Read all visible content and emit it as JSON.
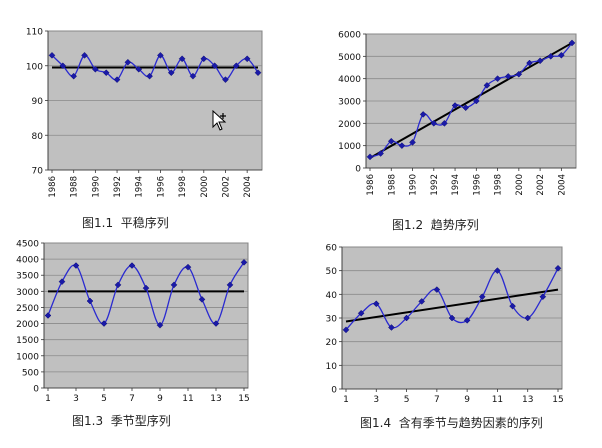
{
  "captions": {
    "c1": "图1.1  平稳序列",
    "c2": "图1.2  趋势序列",
    "c3": "图1.3  季节型序列",
    "c4": "图1.4  含有季节与趋势因素的序列"
  },
  "chart_data": [
    {
      "type": "line",
      "title": "",
      "grid": true,
      "ylim": [
        70,
        110
      ],
      "yticks": [
        70,
        80,
        90,
        100,
        110
      ],
      "x": [
        1986,
        1987,
        1988,
        1989,
        1990,
        1991,
        1992,
        1993,
        1994,
        1995,
        1996,
        1997,
        1998,
        1999,
        2000,
        2001,
        2002,
        2003,
        2004,
        2005
      ],
      "xticks": [
        1986,
        1988,
        1990,
        1992,
        1994,
        1996,
        1998,
        2000,
        2002,
        2004
      ],
      "series": [
        {
          "values": [
            103,
            100,
            97,
            103,
            99,
            98,
            96,
            101,
            99,
            97,
            103,
            98,
            102,
            97,
            102,
            100,
            96,
            100,
            102,
            98
          ]
        }
      ],
      "trend": {
        "start": 99.5,
        "end": 99.5
      }
    },
    {
      "type": "line",
      "title": "",
      "grid": true,
      "ylim": [
        0,
        6000
      ],
      "yticks": [
        0,
        1000,
        2000,
        3000,
        4000,
        5000,
        6000
      ],
      "x": [
        1986,
        1987,
        1988,
        1989,
        1990,
        1991,
        1992,
        1993,
        1994,
        1995,
        1996,
        1997,
        1998,
        1999,
        2000,
        2001,
        2002,
        2003,
        2004,
        2005
      ],
      "xticks": [
        1986,
        1988,
        1990,
        1992,
        1994,
        1996,
        1998,
        2000,
        2002,
        2004
      ],
      "series": [
        {
          "values": [
            500,
            650,
            1200,
            1000,
            1150,
            2400,
            2000,
            2000,
            2800,
            2700,
            3000,
            3700,
            4000,
            4100,
            4200,
            4700,
            4800,
            5000,
            5050,
            5600
          ]
        }
      ],
      "trend": {
        "start": 450,
        "end": 5600
      }
    },
    {
      "type": "line",
      "title": "",
      "grid": true,
      "ylim": [
        0,
        4500
      ],
      "yticks": [
        0,
        500,
        1000,
        1500,
        2000,
        2500,
        3000,
        3500,
        4000,
        4500
      ],
      "x": [
        1,
        2,
        3,
        4,
        5,
        6,
        7,
        8,
        9,
        10,
        11,
        12,
        13,
        14,
        15
      ],
      "xticks": [
        1,
        3,
        5,
        7,
        9,
        11,
        13,
        15
      ],
      "series": [
        {
          "values": [
            2250,
            3300,
            3800,
            2700,
            2000,
            3200,
            3800,
            3100,
            1950,
            3200,
            3750,
            2750,
            2000,
            3200,
            3900
          ]
        }
      ],
      "trend": {
        "start": 3000,
        "end": 3000
      }
    },
    {
      "type": "line",
      "title": "",
      "grid": true,
      "ylim": [
        0,
        60
      ],
      "yticks": [
        0,
        10,
        20,
        30,
        40,
        50,
        60
      ],
      "x": [
        1,
        2,
        3,
        4,
        5,
        6,
        7,
        8,
        9,
        10,
        11,
        12,
        13,
        14,
        15
      ],
      "xticks": [
        1,
        3,
        5,
        7,
        9,
        11,
        13,
        15
      ],
      "series": [
        {
          "values": [
            25,
            32,
            36,
            26,
            30,
            37,
            42,
            30,
            29,
            39,
            50,
            35,
            30,
            39,
            51
          ]
        }
      ],
      "trend": {
        "start": 28.5,
        "end": 42
      }
    }
  ]
}
